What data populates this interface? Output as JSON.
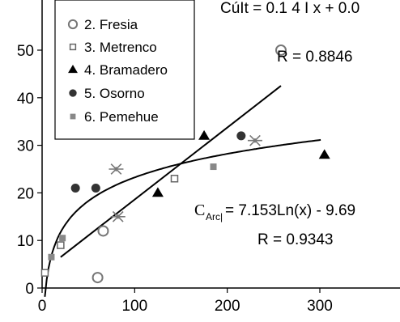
{
  "chart_data": {
    "type": "scatter",
    "xlim": [
      0,
      330
    ],
    "ylim": [
      0,
      58
    ],
    "x_ticks": [
      "0",
      "100",
      "200",
      "300"
    ],
    "y_ticks": [
      "0",
      "10",
      "20",
      "30",
      "40",
      "50"
    ],
    "grid": false,
    "legend_position": "top-left",
    "legend": [
      "2. Fresia",
      "3. Metrenco",
      "4. Bramadero",
      "5. Osorno",
      "6. Pemehue"
    ],
    "series": [
      {
        "name": "2. Fresia",
        "marker": "open-circle",
        "points": [
          [
            60,
            2.2
          ],
          [
            66,
            12
          ],
          [
            258,
            50
          ]
        ]
      },
      {
        "name": "3. Metrenco",
        "marker": "open-square",
        "points": [
          [
            3,
            3.2
          ],
          [
            20,
            9
          ],
          [
            143,
            23
          ]
        ]
      },
      {
        "name": "4. Bramadero",
        "marker": "filled-triangle",
        "points": [
          [
            125,
            20
          ],
          [
            175,
            32
          ],
          [
            305,
            28
          ]
        ]
      },
      {
        "name": "5. Osorno",
        "marker": "filled-circle",
        "points": [
          [
            36,
            21
          ],
          [
            58,
            21
          ],
          [
            215,
            32
          ]
        ]
      },
      {
        "name": "6. Pemehue",
        "marker": "filled-square",
        "points": [
          [
            10,
            6.5
          ],
          [
            22,
            10.5
          ],
          [
            185,
            25.5
          ]
        ]
      },
      {
        "name": "",
        "marker": "asterisk",
        "points": [
          [
            80,
            25
          ],
          [
            82,
            15
          ],
          [
            230,
            31
          ]
        ]
      }
    ],
    "trendlines": [
      {
        "kind": "linear",
        "x_range": [
          20,
          258
        ],
        "y_range": [
          6.5,
          42.5
        ]
      },
      {
        "kind": "log",
        "a": 7.153,
        "b": -9.69,
        "x_range": [
          3,
          302
        ]
      }
    ],
    "annotations": {
      "top_eq_fragment": "CúIt = 0.1 4 I x + 0.0",
      "top_r": "R = 0.8846",
      "log_eq_c": "C",
      "log_eq_sub": "Arc|",
      "log_eq_rest": "= 7.153Ln(x) - 9.69",
      "log_r": "R = 0.9343"
    }
  }
}
